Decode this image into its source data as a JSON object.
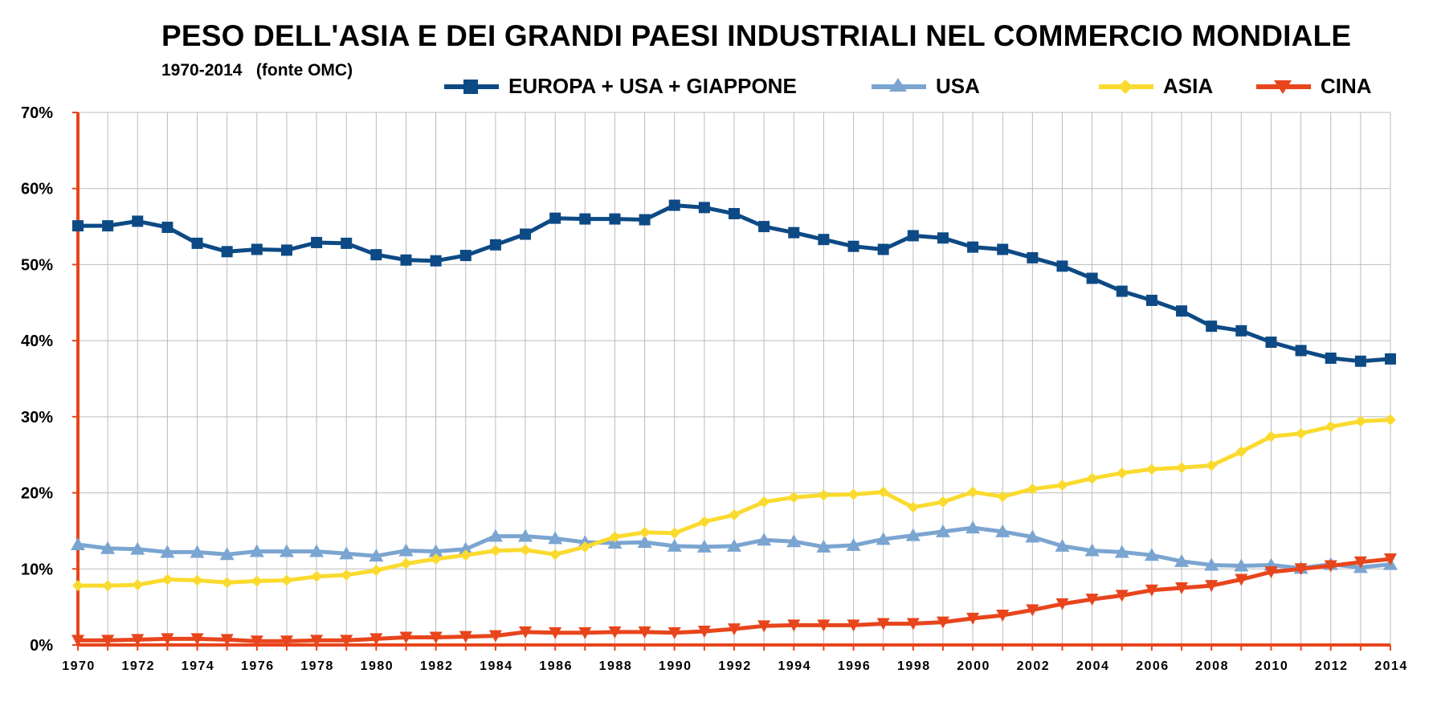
{
  "title": "PESO DELL'ASIA E DEI GRANDI PAESI INDUSTRIALI NEL COMMERCIO MONDIALE",
  "subtitle": "1970-2014   (fonte OMC)",
  "legend": [
    {
      "label": "EUROPA + USA + GIAPPONE"
    },
    {
      "label": "USA"
    },
    {
      "label": "ASIA"
    },
    {
      "label": "CINA"
    }
  ],
  "colors": {
    "europa_usa_giappone": "#0d4a85",
    "usa": "#7ba5d1",
    "asia": "#fada2e",
    "cina": "#e8451c",
    "grid": "#bbbbbb",
    "axis": "#e8451c"
  },
  "chart_data": {
    "type": "line",
    "title": "PESO DELL'ASIA E DEI GRANDI PAESI INDUSTRIALI NEL COMMERCIO MONDIALE",
    "subtitle": "1970-2014   (fonte OMC)",
    "xlabel": "",
    "ylabel": "",
    "ylim": [
      0,
      70
    ],
    "yticks": [
      "0%",
      "10%",
      "20%",
      "30%",
      "40%",
      "50%",
      "60%",
      "70%"
    ],
    "xtick_labels": [
      "1970",
      "1972",
      "1974",
      "1976",
      "1978",
      "1980",
      "1982",
      "1984",
      "1986",
      "1988",
      "1990",
      "1992",
      "1994",
      "1996",
      "1998",
      "2000",
      "2002",
      "2004",
      "2006",
      "2008",
      "2010",
      "2012",
      "2014"
    ],
    "x": [
      1970,
      1971,
      1972,
      1973,
      1974,
      1975,
      1976,
      1977,
      1978,
      1979,
      1980,
      1981,
      1982,
      1983,
      1984,
      1985,
      1986,
      1987,
      1988,
      1989,
      1990,
      1991,
      1992,
      1993,
      1994,
      1995,
      1996,
      1997,
      1998,
      1999,
      2000,
      2001,
      2002,
      2003,
      2004,
      2005,
      2006,
      2007,
      2008,
      2009,
      2010,
      2011,
      2012,
      2013,
      2014
    ],
    "grid": true,
    "legend_position": "top",
    "series": [
      {
        "name": "EUROPA + USA + GIAPPONE",
        "marker": "square",
        "values": [
          55.1,
          55.1,
          55.7,
          54.9,
          52.8,
          51.7,
          52.0,
          51.9,
          52.9,
          52.8,
          51.3,
          50.6,
          50.5,
          51.2,
          52.6,
          54.0,
          56.1,
          56.0,
          56.0,
          55.9,
          57.8,
          57.5,
          56.7,
          55.0,
          54.2,
          53.3,
          52.4,
          52.0,
          53.8,
          53.5,
          52.3,
          52.0,
          50.9,
          49.8,
          48.2,
          46.5,
          45.3,
          43.9,
          41.9,
          41.3,
          39.8,
          38.7,
          37.7,
          37.3,
          37.6
        ]
      },
      {
        "name": "USA",
        "marker": "triangle-up",
        "values": [
          13.2,
          12.7,
          12.6,
          12.2,
          12.2,
          11.9,
          12.3,
          12.3,
          12.3,
          12.0,
          11.7,
          12.4,
          12.3,
          12.6,
          14.3,
          14.3,
          14.0,
          13.5,
          13.4,
          13.5,
          13.0,
          12.9,
          13.0,
          13.8,
          13.6,
          12.9,
          13.1,
          13.9,
          14.4,
          14.9,
          15.4,
          14.9,
          14.2,
          13.0,
          12.4,
          12.2,
          11.8,
          11.0,
          10.5,
          10.4,
          10.5,
          10.1,
          10.6,
          10.2,
          10.6
        ]
      },
      {
        "name": "ASIA",
        "marker": "diamond",
        "values": [
          7.8,
          7.8,
          7.9,
          8.6,
          8.5,
          8.2,
          8.4,
          8.5,
          9.0,
          9.2,
          9.8,
          10.7,
          11.3,
          11.8,
          12.4,
          12.5,
          11.9,
          12.9,
          14.2,
          14.8,
          14.7,
          16.2,
          17.1,
          18.8,
          19.4,
          19.7,
          19.8,
          20.1,
          18.1,
          18.8,
          20.1,
          19.5,
          20.5,
          21.0,
          21.9,
          22.6,
          23.1,
          23.3,
          23.6,
          25.4,
          27.4,
          27.8,
          28.7,
          29.4,
          29.6
        ]
      },
      {
        "name": "CINA",
        "marker": "triangle-down",
        "values": [
          0.6,
          0.6,
          0.7,
          0.8,
          0.8,
          0.7,
          0.5,
          0.5,
          0.6,
          0.6,
          0.8,
          1.0,
          1.0,
          1.1,
          1.2,
          1.7,
          1.6,
          1.6,
          1.7,
          1.7,
          1.6,
          1.8,
          2.1,
          2.5,
          2.6,
          2.6,
          2.6,
          2.8,
          2.8,
          3.0,
          3.5,
          3.9,
          4.6,
          5.4,
          6.0,
          6.5,
          7.2,
          7.5,
          7.8,
          8.6,
          9.6,
          10.0,
          10.4,
          10.9,
          11.3
        ]
      }
    ]
  }
}
